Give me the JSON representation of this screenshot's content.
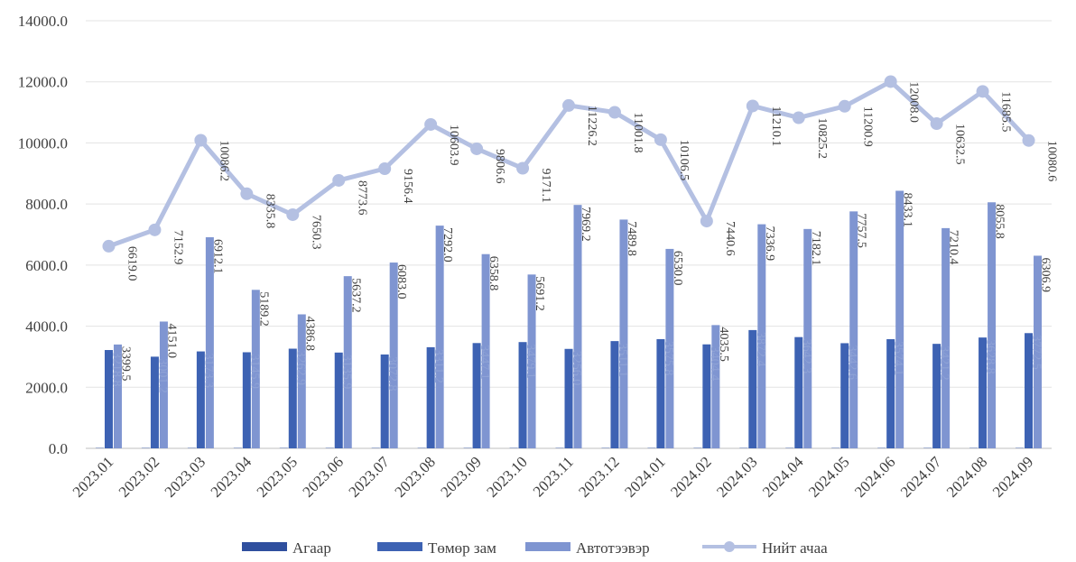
{
  "chart_data": {
    "type": "bar",
    "title": "",
    "xlabel": "",
    "ylabel": "",
    "ylim": [
      0,
      14000
    ],
    "yticks": [
      "0.0",
      "2000.0",
      "4000.0",
      "6000.0",
      "8000.0",
      "10000.0",
      "12000.0",
      "14000.0"
    ],
    "grid": true,
    "legend_position": "bottom",
    "categories": [
      "2023.01",
      "2023.02",
      "2023.03",
      "2023.04",
      "2023.05",
      "2023.06",
      "2023.07",
      "2023.08",
      "2023.09",
      "2023.10",
      "2023.11",
      "2023.12",
      "2024.01",
      "2024.02",
      "2024.03",
      "2024.04",
      "2024.05",
      "2024.06",
      "2024.07",
      "2024.08",
      "2024.09"
    ],
    "series": [
      {
        "name": "Агаар",
        "kind": "bar",
        "color": "#2f4f9e",
        "values": [
          0.8,
          0.6,
          0.7,
          0.7,
          0.7,
          0.8,
          0.8,
          0.9,
          0.8,
          0.8,
          0.8,
          0.8,
          0.6,
          0.6,
          0.8,
          0.8,
          0.8,
          0.8,
          0.8,
          0.8,
          0.7
        ],
        "labels": [
          "",
          "",
          "",
          "",
          "",
          "",
          "",
          "",
          "",
          "",
          "",
          "",
          "",
          "",
          "",
          "",
          "",
          "",
          "",
          "",
          ""
        ]
      },
      {
        "name": "Төмөр зам",
        "kind": "bar",
        "color": "#3d62b3",
        "values": [
          3218.8,
          3001.2,
          3173.3,
          3145.9,
          3262.9,
          3135.9,
          3072.8,
          3311.2,
          3447.1,
          3479.1,
          3256.0,
          3511.1,
          3575.8,
          3404.4,
          3872.4,
          3642.3,
          3442.6,
          3574.1,
          3421.2,
          3628.8,
          3772.5
        ],
        "labels": [
          "3218.8",
          "3001.2",
          "3173.3",
          "3145.9",
          "3262.9",
          "3135.9",
          "3072.8",
          "3311.2",
          "3447.1",
          "3479.1",
          "3256.0",
          "3511.1",
          "3575.8",
          "3404.4",
          "3872.4",
          "3642.3",
          "3442.6",
          "3574.1",
          "3421.2",
          "3628.8",
          "3772.5"
        ]
      },
      {
        "name": "Автотээвэр",
        "kind": "bar",
        "color": "#7f95d1",
        "values": [
          3399.5,
          4151.0,
          6912.1,
          5189.2,
          4386.8,
          5637.2,
          6083.0,
          7292.0,
          6358.8,
          5691.2,
          7969.2,
          7489.8,
          6530.0,
          4035.5,
          7336.9,
          7182.1,
          7757.5,
          8433.1,
          7210.4,
          8055.8,
          6306.9
        ],
        "labels": [
          "3399.5",
          "4151.0",
          "6912.1",
          "5189.2",
          "4386.8",
          "5637.2",
          "6083.0",
          "7292.0",
          "6358.8",
          "5691.2",
          "7969.2",
          "7489.8",
          "6530.0",
          "4035.5",
          "7336.9",
          "7182.1",
          "7757.5",
          "8433.1",
          "7210.4",
          "8055.8",
          "6306.9"
        ]
      },
      {
        "name": "Нийт ачаа",
        "kind": "line",
        "color": "#b4c0e2",
        "values": [
          6619.0,
          7152.9,
          10086.2,
          8335.8,
          7650.3,
          8773.6,
          9156.4,
          10603.9,
          9806.6,
          9171.1,
          11226.2,
          11001.8,
          10106.5,
          7440.6,
          11210.1,
          10825.2,
          11200.9,
          12008.0,
          10632.5,
          11685.5,
          10080.6
        ],
        "labels": [
          "6619.0",
          "7152.9",
          "10086.2",
          "8335.8",
          "7650.3",
          "8773.6",
          "9156.4",
          "10603.9",
          "9806.6",
          "9171.1",
          "11226.2",
          "11001.8",
          "10106.5",
          "7440.6",
          "11210.1",
          "10825.2",
          "11200.9",
          "12008.0",
          "10632.5",
          "11685.5",
          "10080.6"
        ]
      }
    ]
  }
}
